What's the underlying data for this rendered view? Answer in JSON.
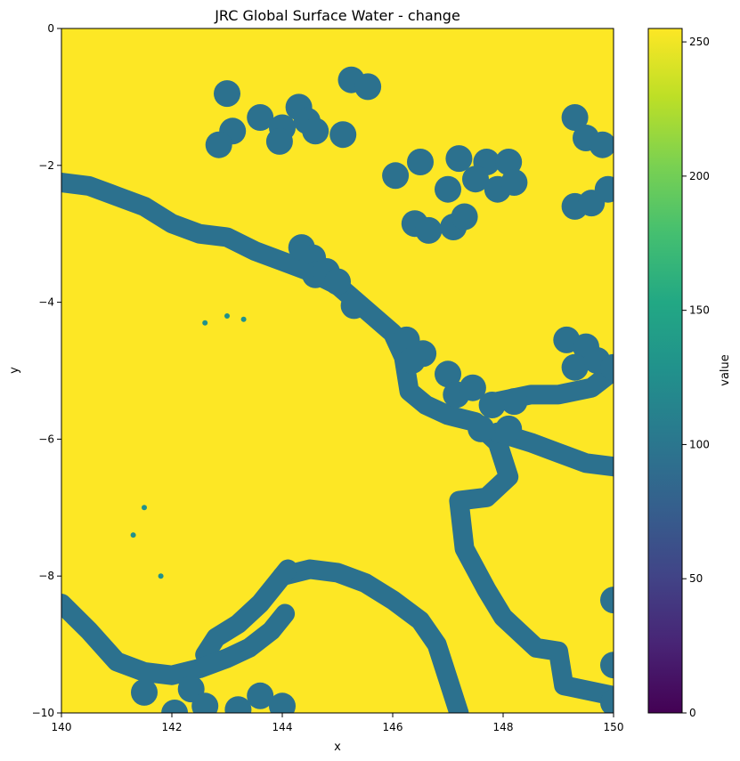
{
  "chart_data": {
    "type": "heatmap",
    "title": "JRC Global Surface Water - change",
    "xlabel": "x",
    "ylabel": "y",
    "xlim": [
      140,
      150
    ],
    "ylim": [
      -10,
      0
    ],
    "x_ticks": [
      140,
      142,
      144,
      146,
      148,
      150
    ],
    "y_ticks": [
      0,
      -2,
      -4,
      -6,
      -8,
      -10
    ],
    "x_tick_labels": [
      "140",
      "142",
      "144",
      "146",
      "148",
      "150"
    ],
    "y_tick_labels": [
      "0",
      "−2",
      "−4",
      "−6",
      "−8",
      "−10"
    ],
    "colorbar": {
      "label": "value",
      "range": [
        0,
        255
      ],
      "ticks": [
        0,
        50,
        100,
        150,
        200,
        250
      ],
      "tick_labels": [
        "0",
        "50",
        "100",
        "150",
        "200",
        "250"
      ],
      "colormap": "viridis"
    },
    "background_value": 253,
    "background_color": "#fde725",
    "feature_value": 100,
    "feature_color": "#2c718e",
    "minor_feature_value": 130,
    "minor_feature_color": "#21918c",
    "river_features": [
      {
        "name": "northern river",
        "points": [
          [
            140,
            -2.25
          ],
          [
            140.5,
            -2.3
          ],
          [
            141,
            -2.45
          ],
          [
            141.5,
            -2.6
          ],
          [
            142,
            -2.85
          ],
          [
            142.5,
            -3.0
          ],
          [
            143,
            -3.05
          ],
          [
            143.5,
            -3.25
          ],
          [
            144,
            -3.4
          ],
          [
            144.5,
            -3.55
          ],
          [
            145,
            -3.75
          ],
          [
            145.5,
            -4.1
          ],
          [
            146,
            -4.45
          ],
          [
            146.2,
            -4.8
          ],
          [
            146.3,
            -5.3
          ],
          [
            146.6,
            -5.5
          ],
          [
            147,
            -5.65
          ],
          [
            147.5,
            -5.75
          ],
          [
            147.9,
            -6.05
          ],
          [
            148.1,
            -6.55
          ],
          [
            147.7,
            -6.85
          ],
          [
            147.2,
            -6.9
          ],
          [
            147.3,
            -7.6
          ],
          [
            147.7,
            -8.2
          ],
          [
            148,
            -8.6
          ],
          [
            148.6,
            -9.05
          ],
          [
            149,
            -9.1
          ],
          [
            149.1,
            -9.6
          ],
          [
            150,
            -9.75
          ]
        ]
      },
      {
        "name": "eastern branch",
        "points": [
          [
            147.9,
            -5.45
          ],
          [
            148.5,
            -5.35
          ],
          [
            149,
            -5.35
          ],
          [
            149.6,
            -5.25
          ],
          [
            150,
            -5.0
          ]
        ]
      },
      {
        "name": "eastern branch 2",
        "points": [
          [
            147.9,
            -5.9
          ],
          [
            148.5,
            -6.05
          ],
          [
            149,
            -6.2
          ],
          [
            149.5,
            -6.35
          ],
          [
            150,
            -6.4
          ]
        ]
      },
      {
        "name": "southern river",
        "points": [
          [
            144,
            -8.0
          ],
          [
            144.5,
            -7.9
          ],
          [
            145,
            -7.95
          ],
          [
            145.5,
            -8.1
          ],
          [
            146,
            -8.35
          ],
          [
            146.5,
            -8.65
          ],
          [
            146.8,
            -9.0
          ],
          [
            147,
            -9.5
          ],
          [
            147.2,
            -10.0
          ]
        ]
      },
      {
        "name": "fly delta",
        "points": [
          [
            144.1,
            -7.9
          ],
          [
            143.6,
            -8.4
          ],
          [
            143.2,
            -8.7
          ],
          [
            142.8,
            -8.9
          ],
          [
            142.6,
            -9.15
          ]
        ]
      },
      {
        "name": "southwest coast",
        "points": [
          [
            140,
            -8.4
          ],
          [
            140.5,
            -8.8
          ],
          [
            141,
            -9.25
          ],
          [
            141.5,
            -9.4
          ],
          [
            142,
            -9.45
          ],
          [
            142.5,
            -9.35
          ],
          [
            143,
            -9.2
          ],
          [
            143.4,
            -9.05
          ],
          [
            143.8,
            -8.8
          ],
          [
            144.05,
            -8.55
          ]
        ]
      }
    ],
    "blob_features": [
      [
        143.0,
        -0.95
      ],
      [
        143.1,
        -1.5
      ],
      [
        142.85,
        -1.7
      ],
      [
        143.6,
        -1.3
      ],
      [
        144.3,
        -1.15
      ],
      [
        144.0,
        -1.45
      ],
      [
        143.95,
        -1.65
      ],
      [
        144.45,
        -1.35
      ],
      [
        144.6,
        -1.5
      ],
      [
        145.25,
        -0.75
      ],
      [
        145.55,
        -0.85
      ],
      [
        145.1,
        -1.55
      ],
      [
        146.05,
        -2.15
      ],
      [
        146.5,
        -1.95
      ],
      [
        147.2,
        -1.9
      ],
      [
        147.7,
        -1.95
      ],
      [
        148.1,
        -1.95
      ],
      [
        147.5,
        -2.2
      ],
      [
        147.0,
        -2.35
      ],
      [
        147.9,
        -2.35
      ],
      [
        148.2,
        -2.25
      ],
      [
        146.4,
        -2.85
      ],
      [
        146.65,
        -2.95
      ],
      [
        147.1,
        -2.9
      ],
      [
        147.3,
        -2.75
      ],
      [
        149.3,
        -1.3
      ],
      [
        149.5,
        -1.6
      ],
      [
        149.8,
        -1.7
      ],
      [
        149.9,
        -2.35
      ],
      [
        149.3,
        -2.6
      ],
      [
        149.6,
        -2.55
      ],
      [
        144.35,
        -3.2
      ],
      [
        144.55,
        -3.35
      ],
      [
        144.6,
        -3.6
      ],
      [
        144.8,
        -3.55
      ],
      [
        145.0,
        -3.7
      ],
      [
        145.3,
        -4.05
      ],
      [
        146.25,
        -4.55
      ],
      [
        146.55,
        -4.75
      ],
      [
        146.35,
        -4.85
      ],
      [
        147.0,
        -5.05
      ],
      [
        147.15,
        -5.35
      ],
      [
        147.45,
        -5.25
      ],
      [
        147.8,
        -5.5
      ],
      [
        147.6,
        -5.85
      ],
      [
        148.1,
        -5.85
      ],
      [
        148.2,
        -5.45
      ],
      [
        149.15,
        -4.55
      ],
      [
        149.5,
        -4.65
      ],
      [
        149.3,
        -4.95
      ],
      [
        149.7,
        -4.85
      ],
      [
        150.0,
        -4.95
      ],
      [
        150.0,
        -8.35
      ],
      [
        150.0,
        -9.3
      ],
      [
        150.0,
        -9.85
      ],
      [
        141.5,
        -9.7
      ],
      [
        142.35,
        -9.65
      ],
      [
        142.6,
        -9.9
      ],
      [
        143.2,
        -9.95
      ],
      [
        143.6,
        -9.75
      ],
      [
        144.0,
        -9.9
      ],
      [
        142.05,
        -10.0
      ]
    ]
  }
}
